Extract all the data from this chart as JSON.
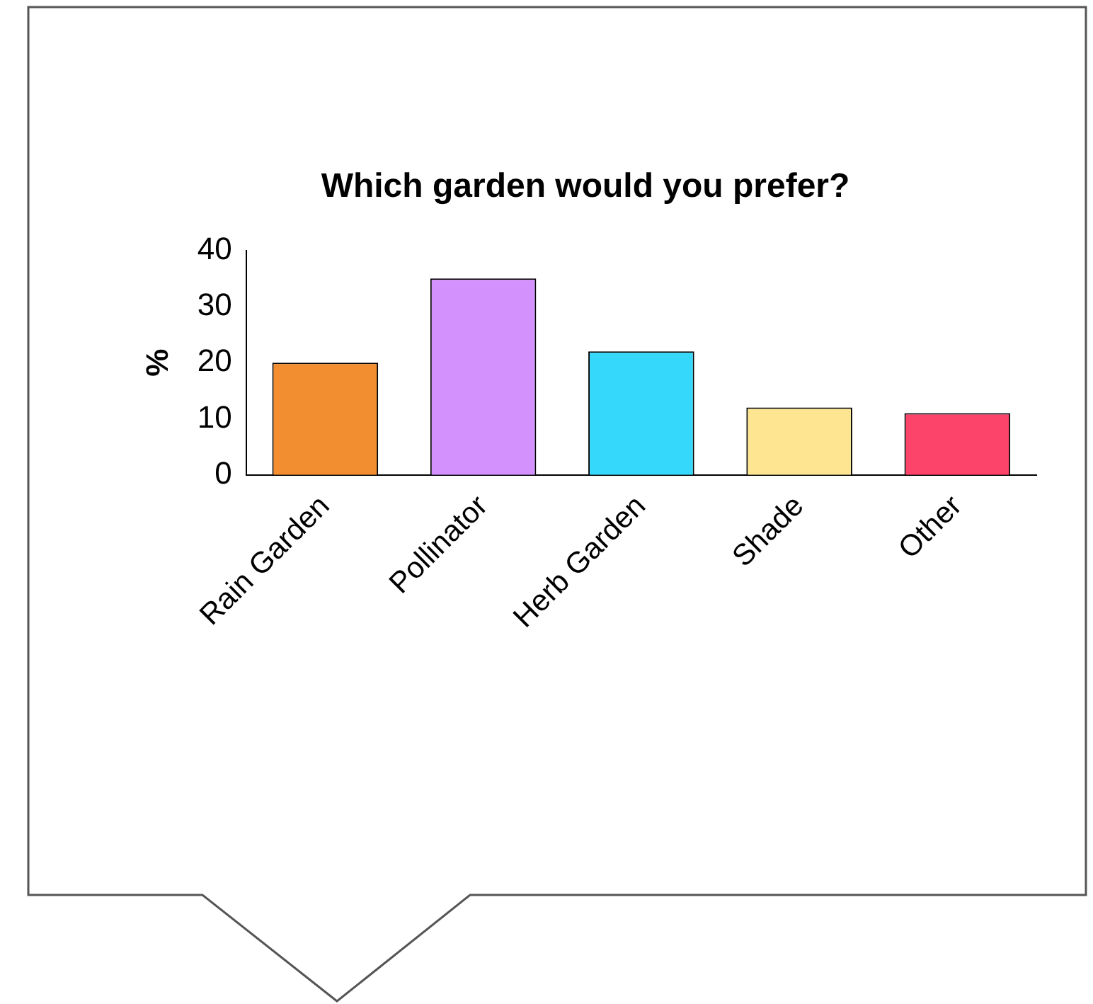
{
  "chart_data": {
    "type": "bar",
    "title": "Which garden would you prefer?",
    "ylabel": "%",
    "categories": [
      "Rain Garden",
      "Pollinator",
      "Herb Garden",
      "Shade",
      "Other"
    ],
    "values": [
      20,
      35,
      22,
      12,
      11
    ],
    "colors": [
      "#f28e30",
      "#d291fc",
      "#35d8fb",
      "#fde592",
      "#fc436a"
    ],
    "ylim": [
      0,
      40
    ],
    "yticks": [
      0,
      10,
      20,
      30,
      40
    ],
    "grid": false,
    "legend": false
  }
}
